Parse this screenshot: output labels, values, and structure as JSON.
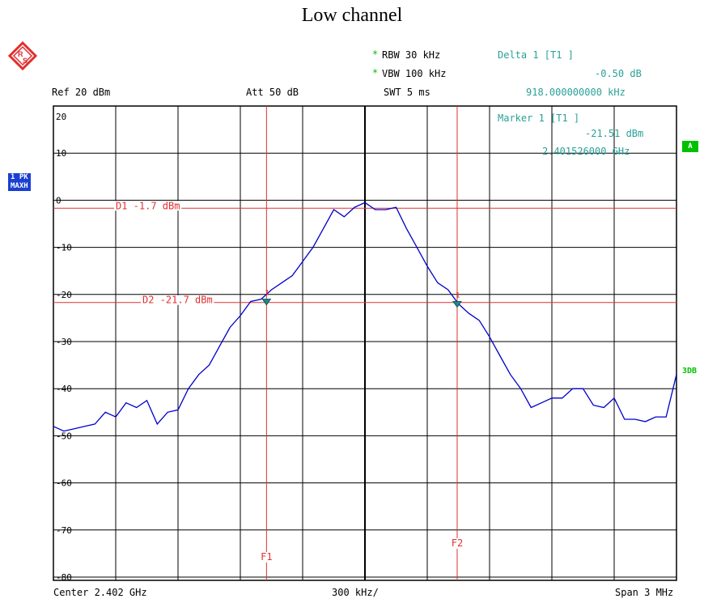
{
  "title": "Low channel",
  "header": {
    "ref": "Ref  20 dBm",
    "att": "Att  50 dB",
    "rbw": "RBW 30 kHz",
    "vbw": "VBW 100 kHz",
    "swt": "SWT 5 ms",
    "rbw_star": "*",
    "vbw_star": "*"
  },
  "delta_marker": {
    "label": "Delta 1 [T1 ]",
    "value1": "-0.50 dB",
    "value2": "918.000000000 kHz"
  },
  "marker1": {
    "label": "Marker 1 [T1 ]",
    "value1": "-21.51 dBm",
    "value2": "2.401526000 GHz"
  },
  "side_labels": {
    "trace_badge_1": "1 PK",
    "trace_badge_2": "MAXH",
    "a_badge": "A",
    "threedb": "3DB"
  },
  "footer": {
    "center": "Center 2.402 GHz",
    "div": "300 kHz/",
    "span": "Span 3 MHz"
  },
  "colors": {
    "trace": "#0000cc",
    "marker_line": "#e03030",
    "text_teal": "#2aa198",
    "badge_blue": "#1a3fd1",
    "badge_green": "#00c000"
  },
  "chart_data": {
    "type": "line",
    "title": "Low channel",
    "xlabel": "",
    "ylabel": "",
    "xlim": [
      2.4005,
      2.4035
    ],
    "ylim": [
      -85,
      20
    ],
    "ytick_labels": [
      "20",
      "10",
      "0",
      "-10",
      "-20",
      "-30",
      "-40",
      "-50",
      "-60",
      "-70",
      "-80"
    ],
    "grid": true,
    "display_lines": [
      {
        "name": "D1 -1.7 dBm",
        "y": -1.7
      },
      {
        "name": "D2 -21.7 dBm",
        "y": -21.7
      }
    ],
    "frequency_lines": [
      {
        "name": "F1",
        "x": 2.401526
      },
      {
        "name": "F2",
        "x": 2.402444
      }
    ],
    "markers": [
      {
        "name": "1",
        "x": 2.401526,
        "y": -21.51
      },
      {
        "name": "1",
        "x": 2.402444,
        "y": -22.0
      }
    ],
    "series": [
      {
        "name": "1 PK MAXH",
        "x": [
          2.4005,
          2.40055,
          2.4006,
          2.40065,
          2.4007,
          2.40075,
          2.4008,
          2.40085,
          2.4009,
          2.40095,
          2.401,
          2.40105,
          2.4011,
          2.40115,
          2.4012,
          2.40125,
          2.4013,
          2.40135,
          2.4014,
          2.40145,
          2.4015,
          2.40155,
          2.4016,
          2.40165,
          2.4017,
          2.40175,
          2.4018,
          2.40185,
          2.4019,
          2.40195,
          2.402,
          2.40205,
          2.4021,
          2.40215,
          2.4022,
          2.40225,
          2.4023,
          2.40235,
          2.4024,
          2.40245,
          2.4025,
          2.40255,
          2.4026,
          2.40265,
          2.4027,
          2.40275,
          2.4028,
          2.40285,
          2.4029,
          2.40295,
          2.403,
          2.40305,
          2.4031,
          2.40315,
          2.4032,
          2.40325,
          2.4033,
          2.40335,
          2.4034,
          2.40345,
          2.4035
        ],
        "y": [
          -48,
          -49,
          -48.5,
          -48,
          -47.5,
          -45,
          -46,
          -43,
          -44,
          -42.5,
          -47.5,
          -45,
          -44.5,
          -40,
          -37,
          -35,
          -31,
          -27,
          -24.5,
          -21.5,
          -21,
          -19,
          -17.5,
          -16,
          -13,
          -10,
          -6,
          -2,
          -3.5,
          -1.5,
          -0.5,
          -2,
          -2,
          -1.5,
          -6,
          -10,
          -14,
          -17.5,
          -19,
          -22,
          -24,
          -25.5,
          -29,
          -33,
          -37,
          -40,
          -44,
          -43,
          -42,
          -42,
          -40,
          -40,
          -43.5,
          -44,
          -42,
          -46.5,
          -46.5,
          -47,
          -46,
          -46,
          -37
        ]
      }
    ]
  }
}
